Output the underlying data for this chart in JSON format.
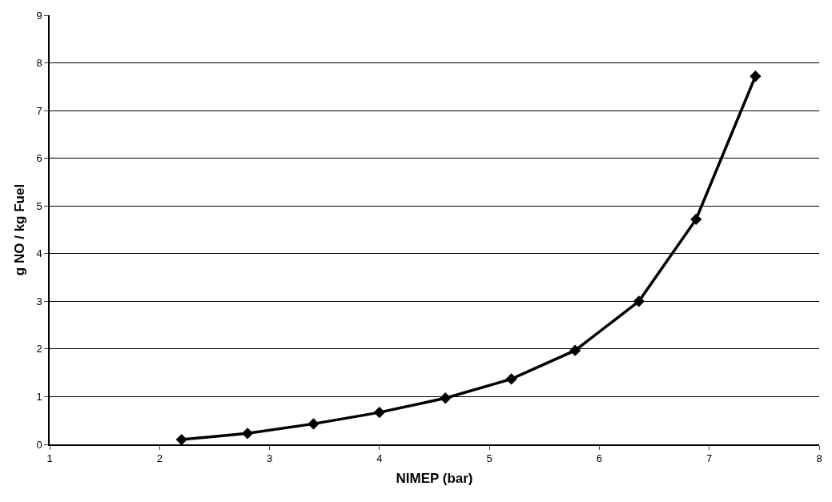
{
  "chart_data": {
    "type": "line",
    "xlabel": "NIMEP (bar)",
    "ylabel": "g NO / kg Fuel",
    "x": [
      2.2,
      2.8,
      3.4,
      4.0,
      4.6,
      5.2,
      5.78,
      6.36,
      6.88,
      7.42
    ],
    "series": [
      {
        "color": "#000000",
        "values": [
          0.1,
          0.23,
          0.43,
          0.67,
          0.97,
          1.37,
          1.97,
          3.0,
          4.72,
          7.72
        ]
      }
    ],
    "xlim": [
      1,
      8
    ],
    "xticks": [
      1,
      2,
      3,
      4,
      5,
      6,
      7,
      8
    ],
    "ylim": [
      0,
      9
    ],
    "yticks": [
      0,
      1,
      2,
      3,
      4,
      5,
      6,
      7,
      8,
      9
    ],
    "grid": "y",
    "marker": "diamond",
    "line_style": "solid"
  }
}
